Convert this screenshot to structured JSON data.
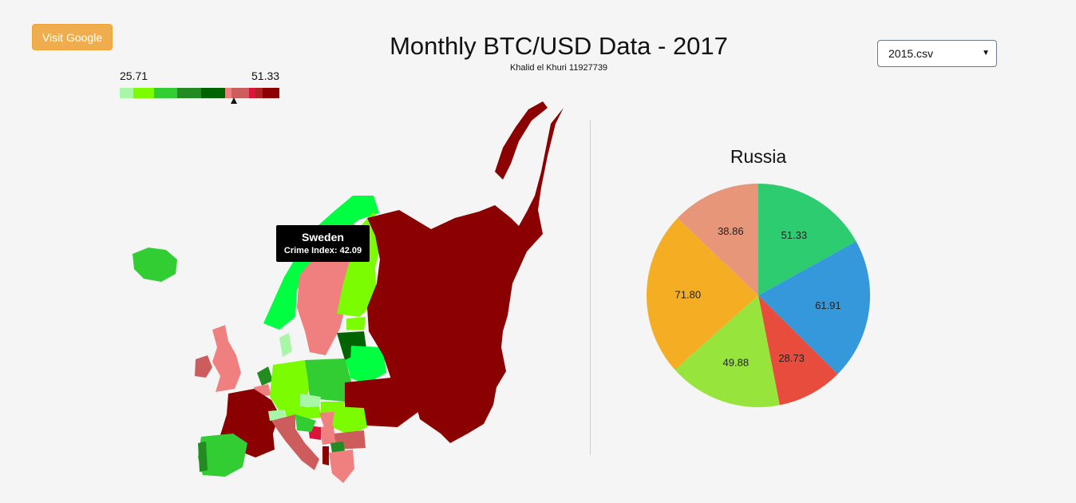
{
  "header": {
    "title": "Monthly BTC/USD Data - 2017",
    "subtitle": "Khalid el Khuri 11927739",
    "visit_button": "Visit Google"
  },
  "dataset_select": {
    "selected": "2015.csv"
  },
  "legend": {
    "min": "25.71",
    "max": "51.33",
    "colors": [
      "#a7f7a7",
      "#7cfc00",
      "#32cd32",
      "#228b22",
      "#006400",
      "#f08080",
      "#cd5c5c",
      "#dc143c",
      "#b22222",
      "#8b0000"
    ],
    "marker_value": 42.09
  },
  "map": {
    "tooltip": {
      "country": "Sweden",
      "label": "Crime Index: 42.09"
    }
  },
  "pie": {
    "title": "Russia",
    "chart_data": {
      "type": "pie",
      "values": [
        51.33,
        61.91,
        28.73,
        49.88,
        71.8,
        38.86
      ],
      "labels": [
        "51.33",
        "61.91",
        "28.73",
        "49.88",
        "71.80",
        "38.86"
      ],
      "colors": [
        "#2ecc71",
        "#3498db",
        "#e74c3c",
        "#97e53c",
        "#f5ae23",
        "#e8967a"
      ]
    }
  }
}
